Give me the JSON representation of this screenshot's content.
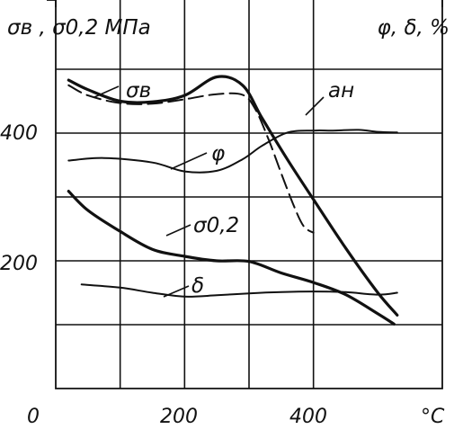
{
  "chart_data": {
    "type": "line",
    "left_axis_label": "σв , σ0,2 МПа",
    "right_axis_label": "φ, δ, %",
    "x_unit": "°C",
    "xlim": [
      0,
      600
    ],
    "ylim_left": [
      0,
      560
    ],
    "y_ticks_left": [
      "400",
      "200"
    ],
    "x_ticks": [
      "0",
      "200",
      "400"
    ],
    "grid": true,
    "series": [
      {
        "name": "σв",
        "style": "solid-thick",
        "x": [
          20,
          50,
          100,
          150,
          200,
          250,
          290,
          320,
          360,
          400,
          450,
          500,
          530
        ],
        "y": [
          483,
          468,
          450,
          449,
          459,
          488,
          475,
          424,
          358,
          296,
          220,
          150,
          115
        ]
      },
      {
        "name": "aн",
        "style": "dashed",
        "x": [
          20,
          50,
          100,
          150,
          200,
          250,
          290,
          310,
          330,
          350,
          370,
          385,
          400
        ],
        "y": [
          475,
          459,
          447,
          446,
          453,
          461,
          460,
          437,
          391,
          337,
          285,
          254,
          244
        ]
      },
      {
        "name": "φ",
        "style": "solid-thin",
        "x": [
          20,
          75,
          150,
          200,
          250,
          290,
          320,
          360,
          400,
          430,
          470,
          500,
          530
        ],
        "y": [
          357,
          361,
          354,
          340,
          341,
          359,
          380,
          401,
          404,
          404,
          405,
          402,
          401
        ]
      },
      {
        "name": "σ0,2",
        "style": "solid-thick",
        "x": [
          20,
          50,
          100,
          150,
          200,
          250,
          300,
          350,
          400,
          450,
          500,
          525
        ],
        "y": [
          309,
          279,
          246,
          218,
          207,
          200,
          199,
          181,
          166,
          147,
          117,
          101
        ]
      },
      {
        "name": "δ",
        "style": "solid-thin",
        "x": [
          40,
          100,
          150,
          200,
          250,
          300,
          350,
          400,
          450,
          500,
          530
        ],
        "y": [
          163,
          158,
          150,
          144,
          146,
          149,
          151,
          152,
          151,
          147,
          150
        ]
      }
    ]
  }
}
